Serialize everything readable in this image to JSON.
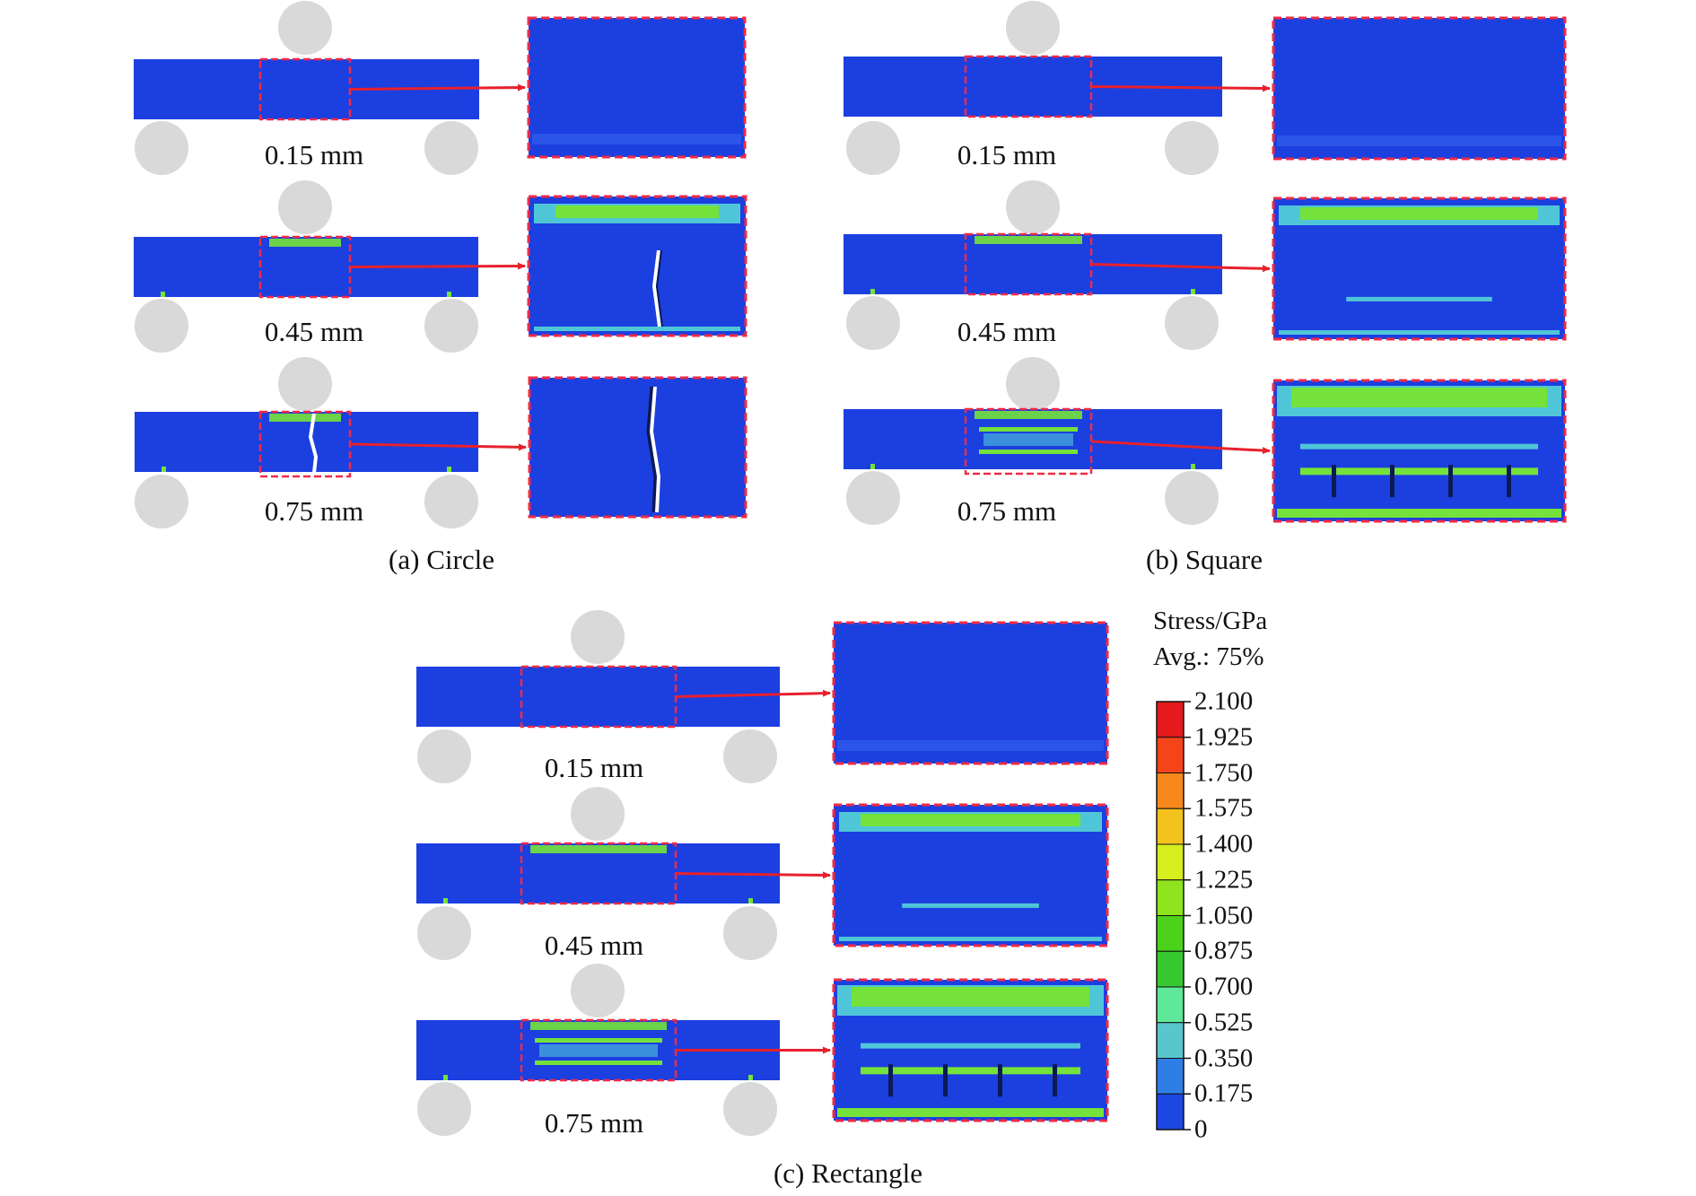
{
  "panels": [
    {
      "caption": "(a) Circle",
      "displacements": [
        "0.15 mm",
        "0.45 mm",
        "0.75 mm"
      ]
    },
    {
      "caption": "(b) Square",
      "displacements": [
        "0.15 mm",
        "0.45 mm",
        "0.75 mm"
      ]
    },
    {
      "caption": "(c) Rectangle",
      "displacements": [
        "0.15 mm",
        "0.45 mm",
        "0.75 mm"
      ]
    }
  ],
  "legend": {
    "title_line1": "Stress/GPa",
    "title_line2": "Avg.: 75%",
    "ticks": [
      "2.100",
      "1.925",
      "1.750",
      "1.575",
      "1.400",
      "1.225",
      "1.050",
      "0.875",
      "0.700",
      "0.525",
      "0.350",
      "0.175",
      "0"
    ],
    "colors": [
      "#e41a1c",
      "#f5431a",
      "#f7891c",
      "#f4c21c",
      "#d6ee1e",
      "#8fe41e",
      "#4cd21b",
      "#38c832",
      "#5fe89a",
      "#58c7cc",
      "#2f7ee6",
      "#1c47e0"
    ]
  },
  "colors": {
    "beam_base": "#1c3fe0",
    "zoom_frame": "#ef2b46",
    "arrow": "#e8202c",
    "support": "#d9d9d9",
    "high_stress": "#74e23a",
    "mid_stress": "#4fc6d8",
    "crack": "#ffffff",
    "dark": "#0b1a55"
  }
}
